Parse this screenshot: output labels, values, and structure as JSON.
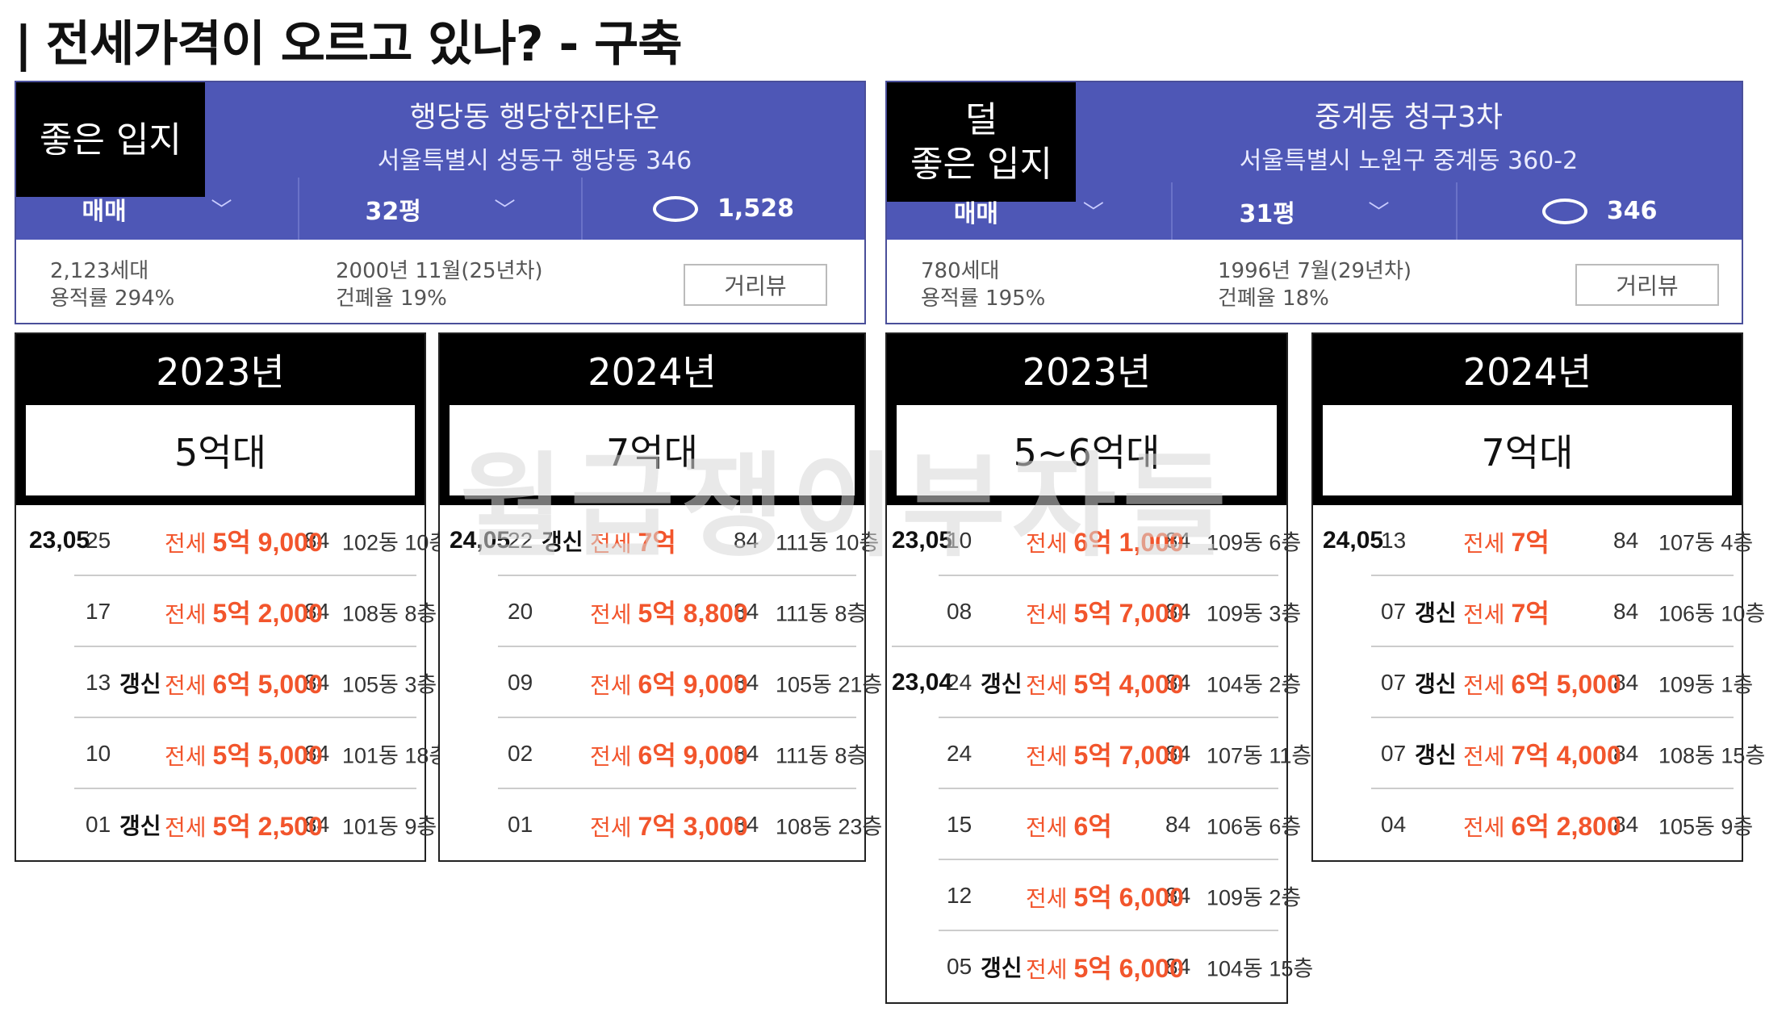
{
  "title": "전세가격이 오르고 있나? - 구축",
  "title_bar": "|",
  "watermark": "월급쟁이부자들",
  "apartments": [
    {
      "badge": "좋은 입지",
      "name": "행당동 행당한진타운",
      "address": "서울특별시 성동구 행당동 346",
      "deal_type": "매매",
      "size": "32평",
      "comments": "1,528",
      "households": "2,123세대",
      "far": "용적률 294%",
      "built": "2000년 11월(25년차)",
      "bcr": "건폐율 19%",
      "road_view": "거리뷰"
    },
    {
      "badge": "덜\n좋은 입지",
      "name": "중계동 청구3차",
      "address": "서울특별시 노원구 중계동 360-2",
      "deal_type": "매매",
      "size": "31평",
      "comments": "346",
      "households": "780세대",
      "far": "용적률 195%",
      "built": "1996년 7월(29년차)",
      "bcr": "건폐율 18%",
      "road_view": "거리뷰"
    }
  ],
  "panels": [
    {
      "year": "2023년",
      "price_range": "5억대",
      "deals": [
        {
          "month": "23,05",
          "day": "25",
          "renew": "",
          "kind": "전세",
          "price": "5억 9,000",
          "area": "84",
          "unit": "102동 10층"
        },
        {
          "month": "",
          "day": "17",
          "renew": "",
          "kind": "전세",
          "price": "5억 2,000",
          "area": "84",
          "unit": "108동 8층"
        },
        {
          "month": "",
          "day": "13",
          "renew": "갱신",
          "kind": "전세",
          "price": "6억 5,000",
          "area": "84",
          "unit": "105동 3층"
        },
        {
          "month": "",
          "day": "10",
          "renew": "",
          "kind": "전세",
          "price": "5억 5,000",
          "area": "84",
          "unit": "101동 18층"
        },
        {
          "month": "",
          "day": "01",
          "renew": "갱신",
          "kind": "전세",
          "price": "5억 2,500",
          "area": "84",
          "unit": "101동 9층"
        }
      ]
    },
    {
      "year": "2024년",
      "price_range": "7억대",
      "deals": [
        {
          "month": "24,05",
          "day": "22",
          "renew": "갱신",
          "kind": "전세",
          "price": "7억",
          "area": "84",
          "unit": "111동 10층"
        },
        {
          "month": "",
          "day": "20",
          "renew": "",
          "kind": "전세",
          "price": "5억 8,800",
          "area": "84",
          "unit": "111동 8층"
        },
        {
          "month": "",
          "day": "09",
          "renew": "",
          "kind": "전세",
          "price": "6억 9,000",
          "area": "84",
          "unit": "105동 21층"
        },
        {
          "month": "",
          "day": "02",
          "renew": "",
          "kind": "전세",
          "price": "6억 9,000",
          "area": "84",
          "unit": "111동 8층"
        },
        {
          "month": "",
          "day": "01",
          "renew": "",
          "kind": "전세",
          "price": "7억 3,000",
          "area": "84",
          "unit": "108동 23층"
        }
      ]
    },
    {
      "year": "2023년",
      "price_range": "5~6억대",
      "deals": [
        {
          "month": "23,05",
          "day": "10",
          "renew": "",
          "kind": "전세",
          "price": "6억 1,000",
          "area": "84",
          "unit": "109동 6층"
        },
        {
          "month": "",
          "day": "08",
          "renew": "",
          "kind": "전세",
          "price": "5억 7,000",
          "area": "84",
          "unit": "109동 3층"
        },
        {
          "month": "23,04",
          "day": "24",
          "renew": "갱신",
          "kind": "전세",
          "price": "5억 4,000",
          "area": "84",
          "unit": "104동 2층"
        },
        {
          "month": "",
          "day": "24",
          "renew": "",
          "kind": "전세",
          "price": "5억 7,000",
          "area": "84",
          "unit": "107동 11층"
        },
        {
          "month": "",
          "day": "15",
          "renew": "",
          "kind": "전세",
          "price": "6억",
          "area": "84",
          "unit": "106동 6층"
        },
        {
          "month": "",
          "day": "12",
          "renew": "",
          "kind": "전세",
          "price": "5억 6,000",
          "area": "84",
          "unit": "109동 2층"
        },
        {
          "month": "",
          "day": "05",
          "renew": "갱신",
          "kind": "전세",
          "price": "5억 6,000",
          "area": "84",
          "unit": "104동 15층"
        }
      ]
    },
    {
      "year": "2024년",
      "price_range": "7억대",
      "deals": [
        {
          "month": "24,05",
          "day": "13",
          "renew": "",
          "kind": "전세",
          "price": "7억",
          "area": "84",
          "unit": "107동 4층"
        },
        {
          "month": "",
          "day": "07",
          "renew": "갱신",
          "kind": "전세",
          "price": "7억",
          "area": "84",
          "unit": "106동 10층"
        },
        {
          "month": "",
          "day": "07",
          "renew": "갱신",
          "kind": "전세",
          "price": "6억 5,000",
          "area": "84",
          "unit": "109동 1층"
        },
        {
          "month": "",
          "day": "07",
          "renew": "갱신",
          "kind": "전세",
          "price": "7억 4,000",
          "area": "84",
          "unit": "108동 15층"
        },
        {
          "month": "",
          "day": "04",
          "renew": "",
          "kind": "전세",
          "price": "6억 2,800",
          "area": "84",
          "unit": "105동 9층"
        }
      ]
    }
  ]
}
